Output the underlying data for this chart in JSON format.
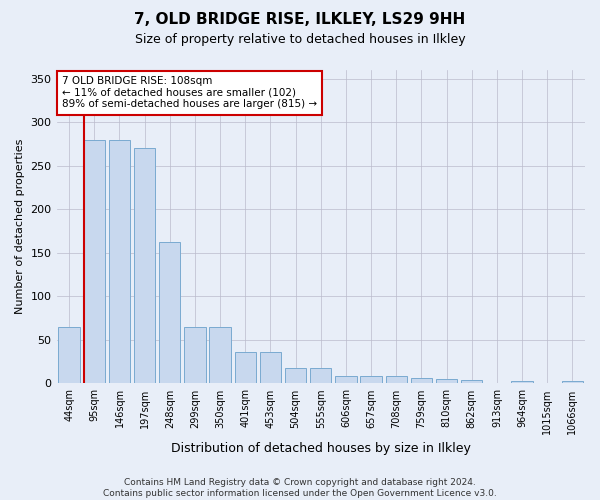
{
  "title1": "7, OLD BRIDGE RISE, ILKLEY, LS29 9HH",
  "title2": "Size of property relative to detached houses in Ilkley",
  "xlabel": "Distribution of detached houses by size in Ilkley",
  "ylabel": "Number of detached properties",
  "categories": [
    "44sqm",
    "95sqm",
    "146sqm",
    "197sqm",
    "248sqm",
    "299sqm",
    "350sqm",
    "401sqm",
    "453sqm",
    "504sqm",
    "555sqm",
    "606sqm",
    "657sqm",
    "708sqm",
    "759sqm",
    "810sqm",
    "862sqm",
    "913sqm",
    "964sqm",
    "1015sqm",
    "1066sqm"
  ],
  "values": [
    65,
    280,
    280,
    270,
    162,
    65,
    65,
    36,
    36,
    18,
    18,
    8,
    9,
    9,
    6,
    5,
    4,
    1,
    3,
    1,
    3
  ],
  "bar_color": "#c8d8ee",
  "bar_edge_color": "#7aaad0",
  "vline_x_index": 1,
  "vline_color": "#cc0000",
  "annotation_text": "7 OLD BRIDGE RISE: 108sqm\n← 11% of detached houses are smaller (102)\n89% of semi-detached houses are larger (815) →",
  "annotation_box_color": "#ffffff",
  "annotation_box_edge": "#cc0000",
  "ylim": [
    0,
    360
  ],
  "yticks": [
    0,
    50,
    100,
    150,
    200,
    250,
    300,
    350
  ],
  "footer": "Contains HM Land Registry data © Crown copyright and database right 2024.\nContains public sector information licensed under the Open Government Licence v3.0.",
  "bg_color": "#e8eef8",
  "plot_bg_color": "#e8eef8",
  "title1_fontsize": 11,
  "title2_fontsize": 9
}
